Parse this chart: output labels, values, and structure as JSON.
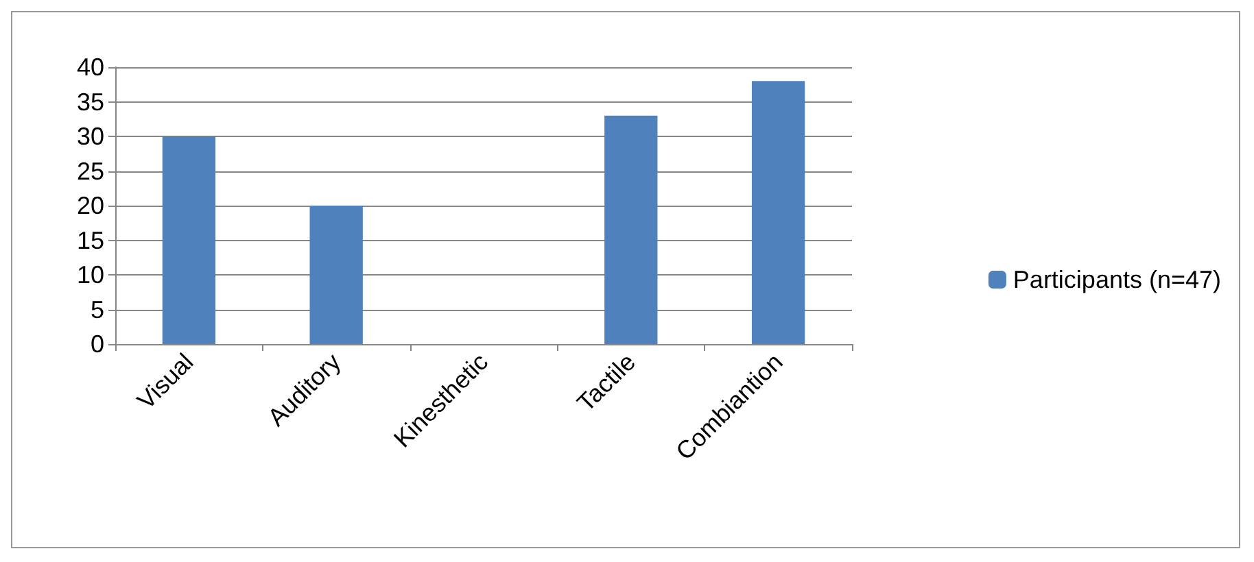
{
  "chart_data": {
    "type": "bar",
    "categories": [
      "Visual",
      "Auditory",
      "Kinesthetic",
      "Tactile",
      "Combiantion"
    ],
    "series": [
      {
        "name": "Participants (n=47)",
        "color": "#4f81bd",
        "values": [
          30,
          20,
          0,
          33,
          38
        ]
      }
    ],
    "ylim": [
      0,
      40
    ],
    "yticks": [
      0,
      5,
      10,
      15,
      20,
      25,
      30,
      35,
      40
    ],
    "grid": "y",
    "legend": "right"
  }
}
